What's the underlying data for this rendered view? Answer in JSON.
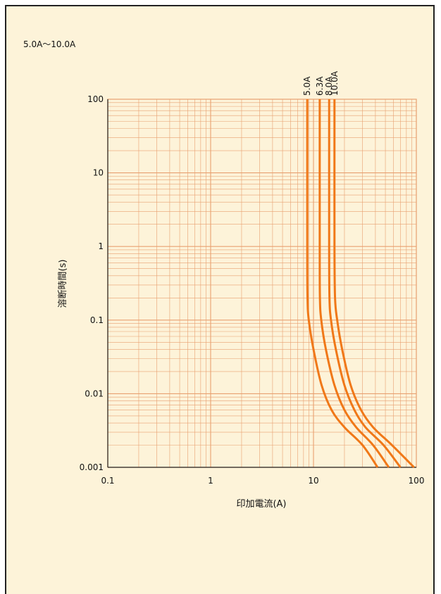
{
  "chart_data": {
    "type": "line",
    "title": "5.0A〜10.0A",
    "xlabel": "印加電流(A)",
    "ylabel": "溶断時間(s)",
    "xscale": "log",
    "yscale": "log",
    "xlim": [
      0.1,
      100
    ],
    "ylim": [
      0.001,
      100
    ],
    "xticks": [
      "0.1",
      "1",
      "10",
      "100"
    ],
    "yticks": [
      "0.001",
      "0.01",
      "0.1",
      "1",
      "10",
      "100"
    ],
    "grid": true,
    "line_color": "#f07818",
    "grid_color": "#e8a070",
    "series": [
      {
        "name": "5.0A",
        "points": [
          [
            8.7,
            100
          ],
          [
            8.7,
            1
          ],
          [
            8.75,
            0.2
          ],
          [
            9.0,
            0.1
          ],
          [
            10.0,
            0.04
          ],
          [
            12.0,
            0.013
          ],
          [
            15.0,
            0.006
          ],
          [
            20.0,
            0.0035
          ],
          [
            30.0,
            0.002
          ],
          [
            42.0,
            0.001
          ]
        ]
      },
      {
        "name": "6.3A",
        "points": [
          [
            11.5,
            100
          ],
          [
            11.5,
            1
          ],
          [
            11.55,
            0.2
          ],
          [
            11.9,
            0.1
          ],
          [
            13.2,
            0.04
          ],
          [
            16.0,
            0.013
          ],
          [
            20.0,
            0.006
          ],
          [
            26.0,
            0.0035
          ],
          [
            38.0,
            0.002
          ],
          [
            54.0,
            0.001
          ]
        ]
      },
      {
        "name": "8.0A",
        "points": [
          [
            14.2,
            100
          ],
          [
            14.2,
            1
          ],
          [
            14.3,
            0.2
          ],
          [
            14.8,
            0.1
          ],
          [
            16.5,
            0.04
          ],
          [
            20.0,
            0.013
          ],
          [
            25.0,
            0.006
          ],
          [
            32.0,
            0.0035
          ],
          [
            48.0,
            0.002
          ],
          [
            70.0,
            0.001
          ]
        ]
      },
      {
        "name": "10.0A",
        "points": [
          [
            16.0,
            100
          ],
          [
            16.0,
            1
          ],
          [
            16.2,
            0.2
          ],
          [
            17.0,
            0.1
          ],
          [
            19.0,
            0.04
          ],
          [
            23.0,
            0.013
          ],
          [
            29.0,
            0.006
          ],
          [
            38.0,
            0.0035
          ],
          [
            58.0,
            0.002
          ],
          [
            95.0,
            0.001
          ]
        ]
      }
    ]
  }
}
